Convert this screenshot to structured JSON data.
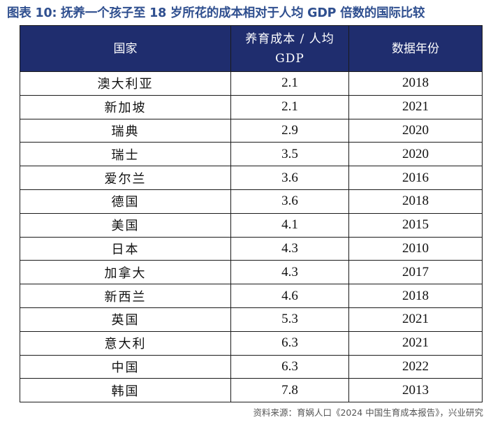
{
  "figure": {
    "title": "图表 10: 抚养一个孩子至 18 岁所花的成本相对于人均 GDP 倍数的国际比较",
    "source": "资料来源：育娲人口《2024 中国生育成本报告》，兴业研究"
  },
  "table": {
    "headers": [
      "国家",
      "养育成本 / 人均 GDP",
      "数据年份"
    ],
    "rows": [
      [
        "澳大利亚",
        "2.1",
        "2018"
      ],
      [
        "新加坡",
        "2.1",
        "2021"
      ],
      [
        "瑞典",
        "2.9",
        "2020"
      ],
      [
        "瑞士",
        "3.5",
        "2020"
      ],
      [
        "爱尔兰",
        "3.6",
        "2016"
      ],
      [
        "德国",
        "3.6",
        "2018"
      ],
      [
        "美国",
        "4.1",
        "2015"
      ],
      [
        "日本",
        "4.3",
        "2010"
      ],
      [
        "加拿大",
        "4.3",
        "2017"
      ],
      [
        "新西兰",
        "4.6",
        "2018"
      ],
      [
        "英国",
        "5.3",
        "2021"
      ],
      [
        "意大利",
        "6.3",
        "2021"
      ],
      [
        "中国",
        "6.3",
        "2022"
      ],
      [
        "韩国",
        "7.8",
        "2013"
      ]
    ]
  },
  "colors": {
    "title": "#2f4f8f",
    "header_bg": "#1f2d6e",
    "header_text": "#ffffff",
    "border": "#1a1a1a"
  }
}
